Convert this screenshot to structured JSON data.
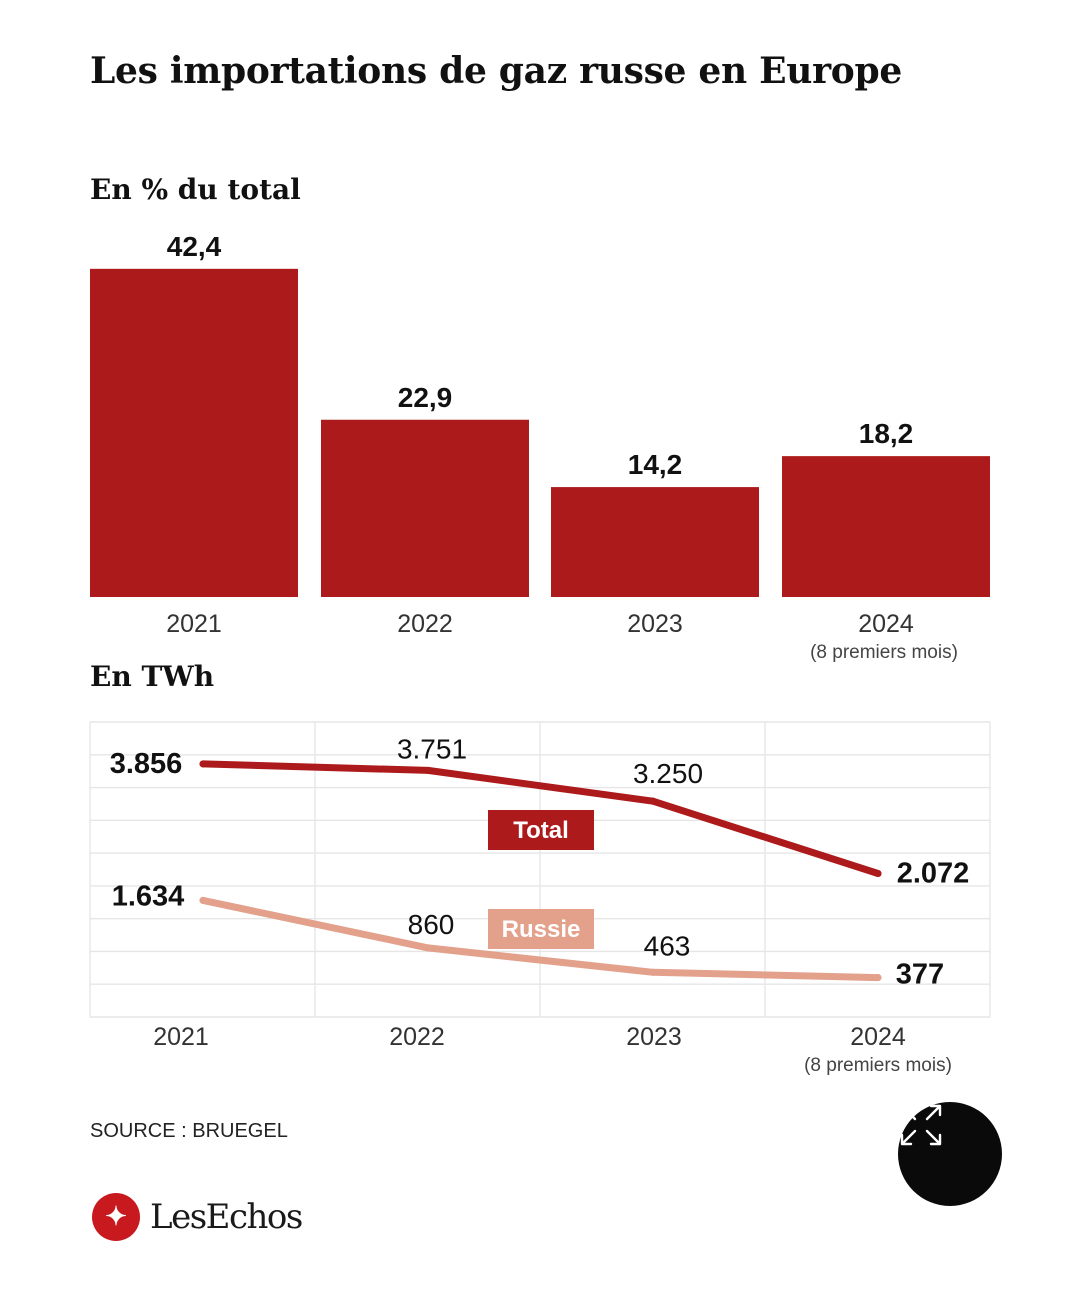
{
  "title": "Les importations de gaz russe en Europe",
  "source": "SOURCE : BRUEGEL",
  "brand": {
    "name": "LesEchos",
    "icon": "les-echos-logo-icon",
    "color": "#c8191f"
  },
  "expand_button": {
    "icon": "expand-arrows-icon"
  },
  "colors": {
    "bar": "#ad1a1b",
    "total": "#ad1a1b",
    "russie": "#e3a18c",
    "grid": "#e6e6e6"
  },
  "chart_data": [
    {
      "type": "bar",
      "title": "En % du total",
      "categories": [
        "2021",
        "2022",
        "2023",
        "2024"
      ],
      "category_notes": [
        "",
        "",
        "",
        "(8 premiers mois)"
      ],
      "values": [
        42.4,
        22.9,
        14.2,
        18.2
      ],
      "value_labels": [
        "42,4",
        "22,9",
        "14,2",
        "18,2"
      ],
      "grid": false
    },
    {
      "type": "line",
      "title": "En TWh",
      "x": [
        "2021",
        "2022",
        "2023",
        "2024"
      ],
      "x_notes": [
        "",
        "",
        "",
        "(8 premiers mois)"
      ],
      "ylim": [
        0,
        4000
      ],
      "grid": true,
      "series": [
        {
          "name": "Total",
          "values": [
            3856,
            3751,
            3250,
            2072
          ],
          "labels": [
            "3.856",
            "3.751",
            "3.250",
            "2.072"
          ]
        },
        {
          "name": "Russie",
          "values": [
            1634,
            860,
            463,
            377
          ],
          "labels": [
            "1.634",
            "860",
            "463",
            "377"
          ]
        }
      ]
    }
  ]
}
